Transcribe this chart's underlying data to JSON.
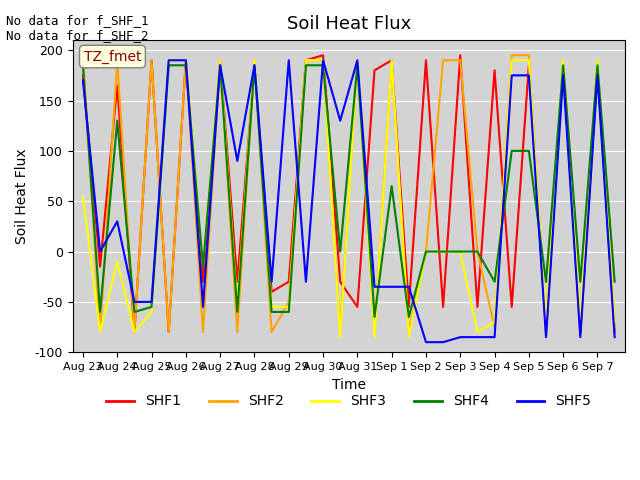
{
  "title": "Soil Heat Flux",
  "xlabel": "Time",
  "ylabel": "Soil Heat Flux",
  "ylim": [
    -100,
    210
  ],
  "yticks": [
    -100,
    -50,
    0,
    50,
    100,
    150,
    200
  ],
  "annotation_text": "No data for f_SHF_1\nNo data for f_SHF_2",
  "legend_label": "TZ_fmet",
  "legend_entries": [
    "SHF1",
    "SHF2",
    "SHF3",
    "SHF4",
    "SHF5"
  ],
  "background_color": "#d3d3d3",
  "colors": {
    "SHF1": "red",
    "SHF2": "orange",
    "SHF3": "yellow",
    "SHF4": "green",
    "SHF5": "blue"
  },
  "x_dates": [
    "Aug 23",
    "Aug 24",
    "Aug 25",
    "Aug 26",
    "Aug 27",
    "Aug 28",
    "Aug 29",
    "Aug 30",
    "Aug 31",
    "Sep 1",
    "Sep 2",
    "Sep 3",
    "Sep 4",
    "Sep 5",
    "Sep 6",
    "Sep 7"
  ],
  "SHF1": [
    175,
    -15,
    165,
    -80,
    190,
    -80,
    190,
    -30,
    190,
    -30,
    185,
    -40,
    -30,
    190,
    195,
    -30,
    -55,
    180,
    190,
    -55,
    190,
    -55,
    195,
    -55,
    180,
    -55,
    185,
    -80,
    185,
    -80,
    180,
    -80
  ],
  "SHF2": [
    195,
    -80,
    190,
    -80,
    190,
    -80,
    190,
    -80,
    190,
    -80,
    190,
    -80,
    -50,
    190,
    190,
    -80,
    190,
    -80,
    190,
    -80,
    0,
    190,
    190,
    0,
    -75,
    195,
    195,
    -75,
    190,
    -75,
    190,
    -75
  ],
  "SHF3": [
    55,
    -80,
    -10,
    -80,
    -60,
    190,
    190,
    -15,
    190,
    -55,
    190,
    -55,
    -55,
    190,
    190,
    -85,
    190,
    -85,
    190,
    -85,
    0,
    0,
    0,
    -80,
    -70,
    190,
    190,
    -70,
    190,
    -70,
    190,
    -70
  ],
  "SHF4": [
    185,
    -60,
    130,
    -60,
    -55,
    185,
    185,
    -15,
    185,
    -60,
    185,
    -60,
    -60,
    185,
    185,
    0,
    185,
    -65,
    65,
    -65,
    0,
    0,
    0,
    0,
    -30,
    100,
    100,
    -30,
    185,
    -30,
    185,
    -30
  ],
  "SHF5": [
    170,
    0,
    30,
    -50,
    -50,
    190,
    190,
    -55,
    185,
    90,
    185,
    -30,
    190,
    -30,
    190,
    130,
    190,
    -35,
    -35,
    -35,
    -90,
    -90,
    -85,
    -85,
    -85,
    175,
    175,
    -85,
    175,
    -85,
    175,
    -85
  ],
  "n_days": 16,
  "pts_per_day": 2
}
